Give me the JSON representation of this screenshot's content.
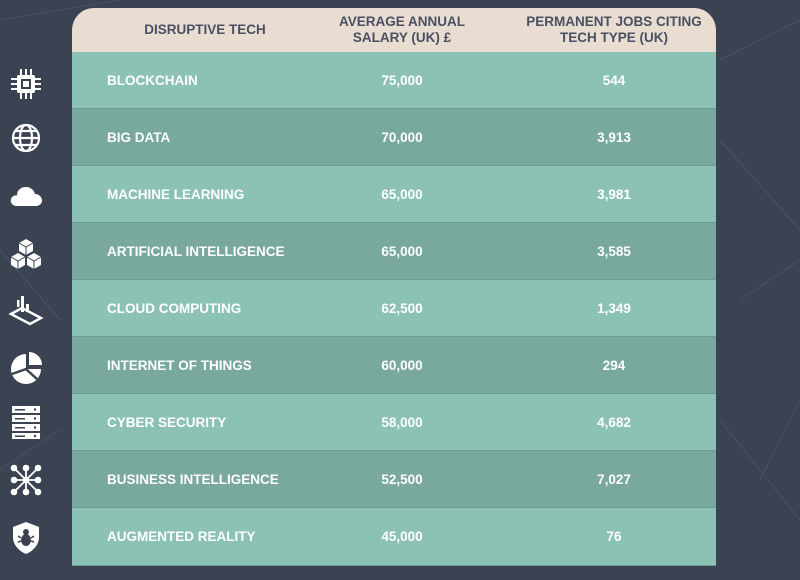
{
  "chart_data": {
    "type": "table",
    "columns": [
      "DISRUPTIVE TECH",
      "AVERAGE ANNUAL SALARY (UK) £",
      "PERMANENT JOBS CITING TECH TYPE (UK)"
    ],
    "rows": [
      {
        "tech": "BLOCKCHAIN",
        "salary": "75,000",
        "jobs": "544",
        "icon": "chip-icon"
      },
      {
        "tech": "BIG DATA",
        "salary": "70,000",
        "jobs": "3,913",
        "icon": "globe-icon"
      },
      {
        "tech": "MACHINE LEARNING",
        "salary": "65,000",
        "jobs": "3,981",
        "icon": "cloud-icon"
      },
      {
        "tech": "ARTIFICIAL INTELLIGENCE",
        "salary": "65,000",
        "jobs": "3,585",
        "icon": "cubes-icon"
      },
      {
        "tech": "CLOUD COMPUTING",
        "salary": "62,500",
        "jobs": "1,349",
        "icon": "touch-device-icon"
      },
      {
        "tech": "INTERNET OF THINGS",
        "salary": "60,000",
        "jobs": "294",
        "icon": "pie-chart-icon"
      },
      {
        "tech": "CYBER SECURITY",
        "salary": "58,000",
        "jobs": "4,682",
        "icon": "server-rack-icon"
      },
      {
        "tech": "BUSINESS INTELLIGENCE",
        "salary": "52,500",
        "jobs": "7,027",
        "icon": "network-nodes-icon"
      },
      {
        "tech": "AUGMENTED REALITY",
        "salary": "45,000",
        "jobs": "76",
        "icon": "bug-shield-icon"
      }
    ]
  },
  "header": {
    "col1": "DISRUPTIVE TECH",
    "col2": "AVERAGE ANNUAL SALARY (UK) £",
    "col3": "PERMANENT JOBS CITING TECH TYPE (UK)"
  },
  "colors": {
    "background": "#3b4252",
    "header_bg": "#e8ddd0",
    "header_text": "#4a4f63",
    "row_light": "#8cc2b6",
    "row_dark": "#78a89e",
    "cell_text": "#ffffff"
  }
}
